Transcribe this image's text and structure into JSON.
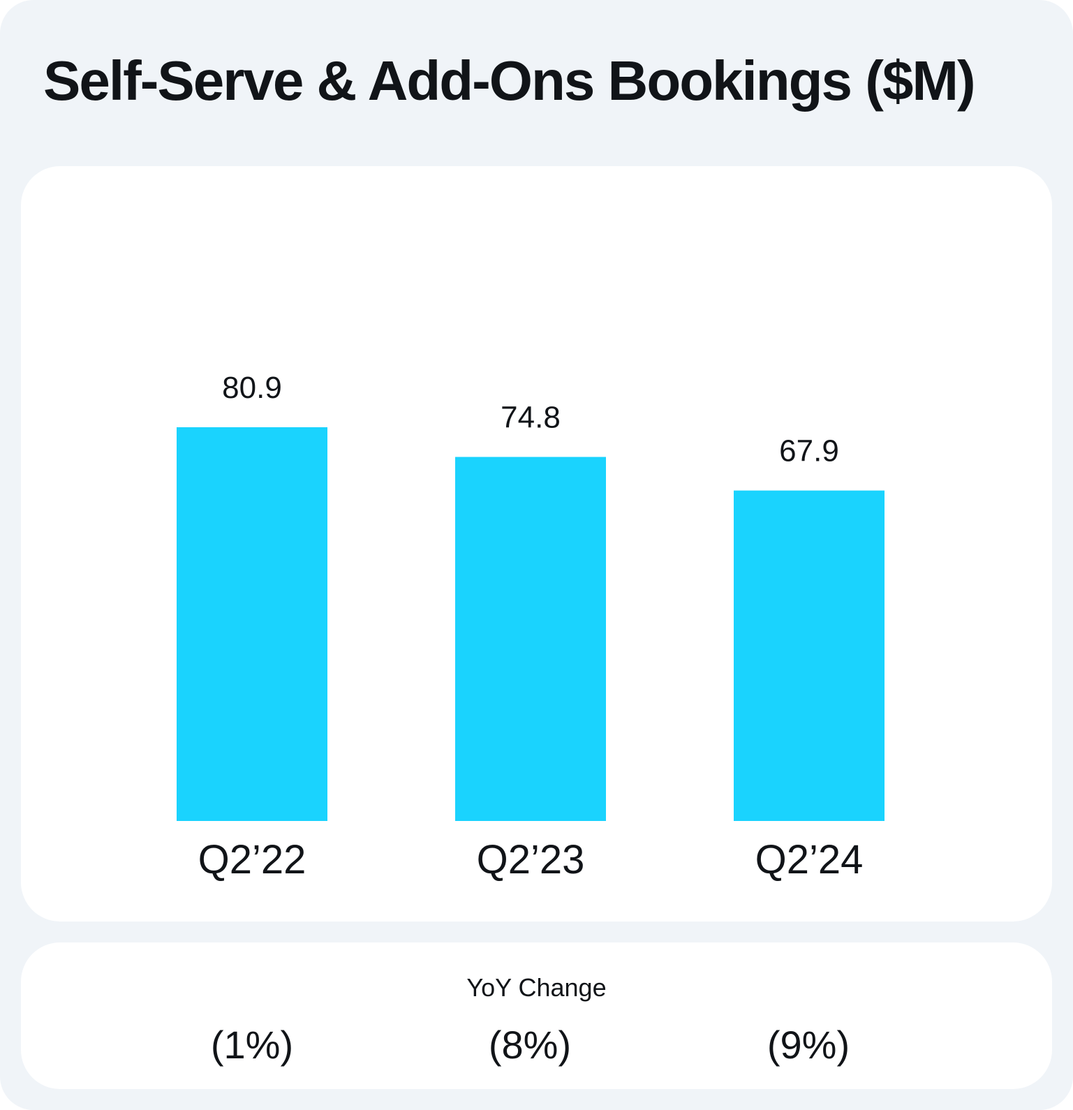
{
  "title": "Self-Serve & Add-Ons Bookings ($M)",
  "colors": {
    "bar": "#1ad3fe",
    "background": "#f0f4f8",
    "panel": "#ffffff",
    "text": "#111418"
  },
  "chart_data": {
    "type": "bar",
    "title": "Self-Serve & Add-Ons Bookings ($M)",
    "categories": [
      "Q2’22",
      "Q2’23",
      "Q2’24"
    ],
    "values": [
      80.9,
      74.8,
      67.9
    ],
    "value_labels": [
      "80.9",
      "74.8",
      "67.9"
    ],
    "xlabel": "",
    "ylabel": "",
    "ylim": [
      0,
      80.9
    ],
    "grid": false,
    "legend": "none"
  },
  "yoy": {
    "title": "YoY Change",
    "values": [
      "(1%)",
      "(8%)",
      "(9%)"
    ]
  }
}
